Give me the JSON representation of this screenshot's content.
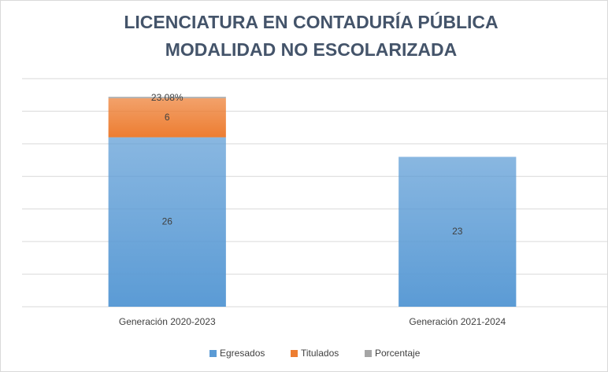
{
  "chart_data": {
    "type": "stacked_bar",
    "title": [
      "LICENCIATURA EN CONTADURÍA PÚBLICA",
      "MODALIDAD NO ESCOLARIZADA"
    ],
    "categories": [
      "Generación 2020-2023",
      "Generación 2021-2024"
    ],
    "series": [
      {
        "name": "Egresados",
        "color": "#5b9bd5",
        "values": [
          26,
          23
        ]
      },
      {
        "name": "Titulados",
        "color": "#ed7d31",
        "values": [
          6,
          null
        ]
      },
      {
        "name": "Porcentaje",
        "color": "#a5a5a5",
        "values": [
          0.2308,
          null
        ],
        "value_labels": [
          "23.08%",
          null
        ]
      }
    ],
    "ylim": [
      0,
      35
    ],
    "yticks": [
      0,
      5,
      10,
      15,
      20,
      25,
      30,
      35
    ],
    "grid": true,
    "legend": "bottom"
  }
}
